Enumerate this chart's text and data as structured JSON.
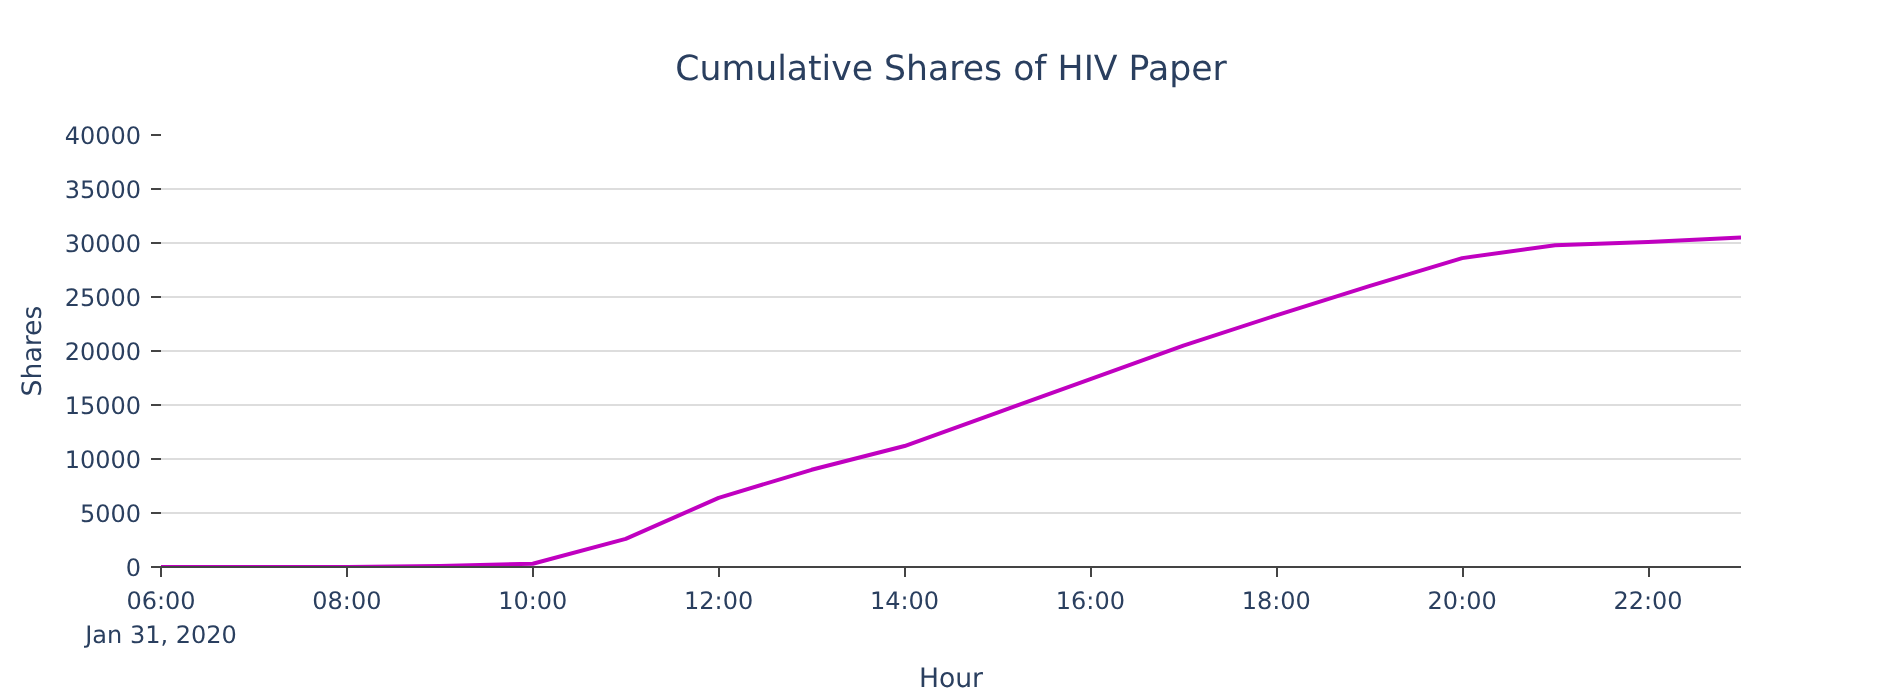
{
  "chart_data": {
    "type": "line",
    "title": "Cumulative Shares of HIV Paper",
    "xlabel": "Hour",
    "ylabel": "Shares",
    "x": [
      "2020-01-31T06:00",
      "2020-01-31T07:00",
      "2020-01-31T08:00",
      "2020-01-31T09:00",
      "2020-01-31T10:00",
      "2020-01-31T11:00",
      "2020-01-31T12:00",
      "2020-01-31T13:00",
      "2020-01-31T14:00",
      "2020-01-31T15:00",
      "2020-01-31T16:00",
      "2020-01-31T17:00",
      "2020-01-31T18:00",
      "2020-01-31T19:00",
      "2020-01-31T20:00",
      "2020-01-31T21:00",
      "2020-01-31T22:00",
      "2020-01-31T23:00"
    ],
    "series": [
      {
        "color": "#c000c0",
        "values": [
          0,
          0,
          0,
          100,
          300,
          2600,
          6400,
          9000,
          11200,
          14300,
          17400,
          20500,
          23300,
          26000,
          28600,
          29800,
          30100,
          30500
        ]
      }
    ],
    "xlim": [
      "2020-01-31T06:00",
      "2020-01-31T23:00"
    ],
    "xticks": [
      {
        "value": "2020-01-31T06:00",
        "label": "06:00\nJan 31, 2020"
      },
      {
        "value": "2020-01-31T08:00",
        "label": "08:00"
      },
      {
        "value": "2020-01-31T10:00",
        "label": "10:00"
      },
      {
        "value": "2020-01-31T12:00",
        "label": "12:00"
      },
      {
        "value": "2020-01-31T14:00",
        "label": "14:00"
      },
      {
        "value": "2020-01-31T16:00",
        "label": "16:00"
      },
      {
        "value": "2020-01-31T18:00",
        "label": "18:00"
      },
      {
        "value": "2020-01-31T20:00",
        "label": "20:00"
      },
      {
        "value": "2020-01-31T22:00",
        "label": "22:00"
      }
    ],
    "ylim": [
      0,
      40000
    ],
    "yticks": [
      0,
      5000,
      10000,
      15000,
      20000,
      25000,
      30000,
      35000,
      40000
    ],
    "grid": "y",
    "marker": "none",
    "line_style": "solid"
  }
}
